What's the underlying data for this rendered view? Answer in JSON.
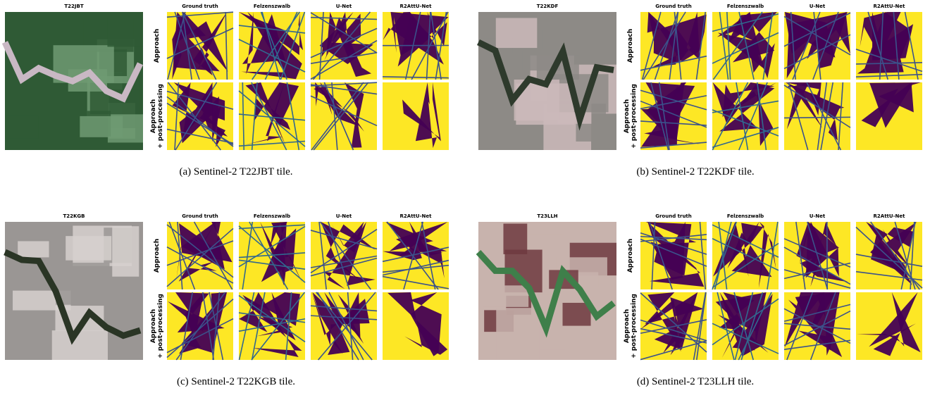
{
  "panels": [
    {
      "tile": "T22JBT",
      "columns": [
        "Ground truth",
        "Felzenszwalb",
        "U-Net",
        "R2AttU-Net"
      ],
      "rows": [
        [
          "Approach"
        ],
        [
          "Approach",
          "+ post-processing"
        ]
      ],
      "caption": "(a) Sentinel-2 T22JBT tile."
    },
    {
      "tile": "T22KDF",
      "columns": [
        "Ground truth",
        "Felzenszwalb",
        "U-Net",
        "R2AttU-Net"
      ],
      "rows": [
        [
          "Approach"
        ],
        [
          "Approach",
          "+ post-processing"
        ]
      ],
      "caption": "(b) Sentinel-2 T22KDF tile."
    },
    {
      "tile": "T22KGB",
      "columns": [
        "Ground truth",
        "Felzenszwalb",
        "U-Net",
        "R2AttU-Net"
      ],
      "rows": [
        [
          "Approach"
        ],
        [
          "Approach",
          "+ post-processing"
        ]
      ],
      "caption": "(c) Sentinel-2 T22KGB tile."
    },
    {
      "tile": "T23LLH",
      "columns": [
        "Ground truth",
        "Felzenszwalb",
        "U-Net",
        "R2AttU-Net"
      ],
      "rows": [
        [
          "Approach"
        ],
        [
          "Approach",
          "+ post-processing"
        ]
      ],
      "caption": "(d) Sentinel-2 T23LLH tile."
    }
  ]
}
